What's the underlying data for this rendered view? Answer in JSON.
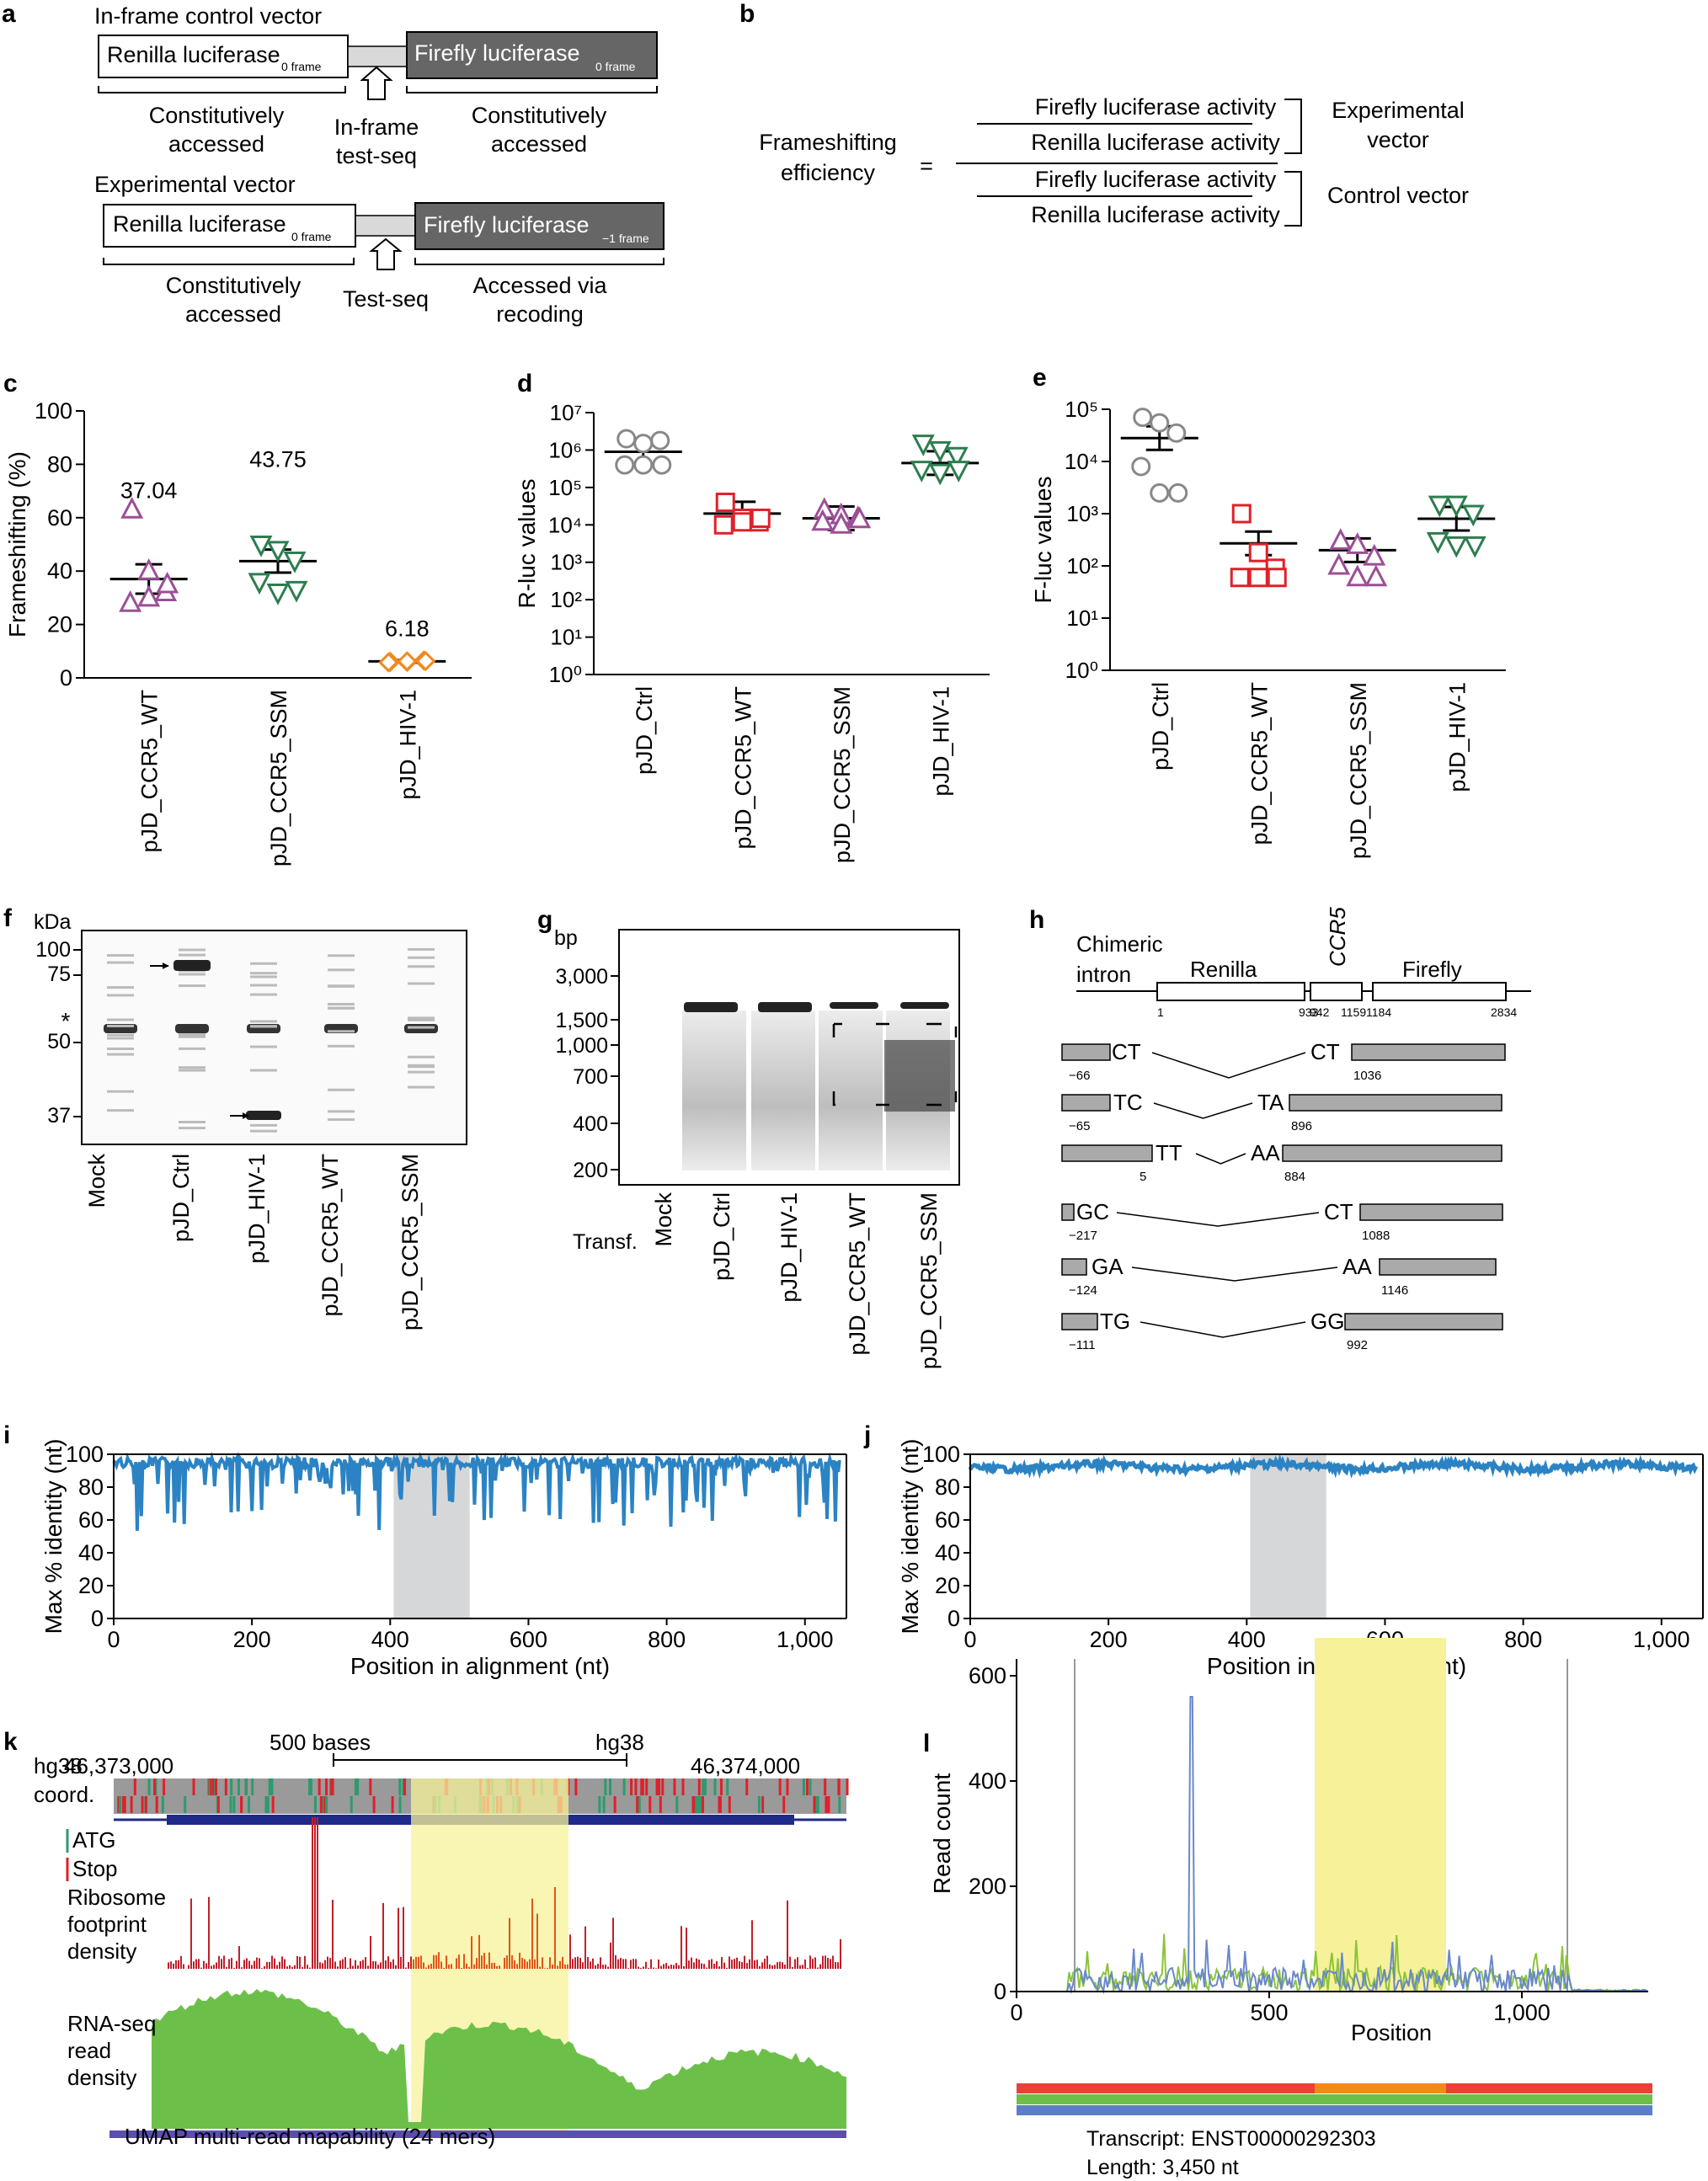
{
  "colors": {
    "grey": "#888888",
    "red": "#e0202a",
    "purple": "#9b4f96",
    "green": "#2e7d4f",
    "orange": "#f08a1c",
    "blue": "#2b83c3",
    "yellow": "#f7f19a",
    "dark": "#666666",
    "shade": "#d6d7d9",
    "rna": "#6cc04a",
    "umap": "#5a4fb0",
    "ribo": "#c0202a"
  },
  "panel_a": {
    "label": "a",
    "control_title": "In-frame control vector",
    "renilla": "Renilla luciferase",
    "frame0": "0 frame",
    "firefly": "Firefly luciferase",
    "frame_m1": "−1 frame",
    "const": "Constitutively",
    "accessed": "accessed",
    "inframe1": "In-frame",
    "inframe2": "test-seq",
    "exp_title": "Experimental vector",
    "testseq": "Test-seq",
    "via1": "Accessed via",
    "via2": "recoding"
  },
  "panel_b": {
    "label": "b",
    "eff1": "Frameshifting",
    "eff2": "efficiency",
    "eq": "=",
    "ff": "Firefly luciferase activity",
    "rl": "Renilla luciferase activity",
    "exp1": "Experimental",
    "exp2": "vector",
    "ctrl": "Control vector"
  },
  "panel_labels": {
    "c": "c",
    "d": "d",
    "e": "e",
    "f": "f",
    "g": "g",
    "h": "h",
    "i": "i",
    "j": "j",
    "k": "k",
    "l": "l"
  },
  "chart_data": [
    {
      "panel": "c",
      "type": "scatter",
      "ylabel": "Frameshifting (%)",
      "ylim": [
        0,
        100
      ],
      "yticks": [
        0,
        20,
        40,
        60,
        80,
        100
      ],
      "categories": [
        "pJD_CCR5_WT",
        "pJD_CCR5_SSM",
        "pJD_HIV-1"
      ],
      "means": [
        37.04,
        43.75,
        6.18
      ],
      "mean_labels": [
        "37.04",
        "43.75",
        "6.18"
      ],
      "sem": [
        5.5,
        4.3,
        0.5
      ],
      "points": [
        [
          63,
          40,
          32,
          28,
          30,
          35
        ],
        [
          50,
          48,
          44,
          36,
          32,
          33
        ],
        [
          6,
          6,
          6.5,
          5.8,
          6.2,
          6.3
        ]
      ]
    },
    {
      "panel": "d",
      "type": "scatter",
      "ylabel": "R-luc values",
      "scale": "log",
      "ylim": [
        0,
        7
      ],
      "ytick_labels": [
        "10⁰",
        "10¹",
        "10²",
        "10³",
        "10⁴",
        "10⁵",
        "10⁶",
        "10⁷"
      ],
      "categories": [
        "pJD_Ctrl",
        "pJD_CCR5_WT",
        "pJD_CCR5_SSM",
        "pJD_HIV-1"
      ],
      "means": [
        900000,
        20000,
        15000,
        450000
      ],
      "points": [
        [
          2000000,
          1500000,
          1800000,
          400000,
          400000,
          400000
        ],
        [
          40000,
          15000,
          12000,
          10000,
          12000,
          15000
        ],
        [
          25000,
          18000,
          15000,
          12000,
          10000,
          14000
        ],
        [
          1500000,
          1000000,
          700000,
          300000,
          250000,
          300000
        ]
      ]
    },
    {
      "panel": "e",
      "type": "scatter",
      "ylabel": "F-luc values",
      "scale": "log",
      "ylim": [
        0,
        5
      ],
      "ytick_labels": [
        "10⁰",
        "10¹",
        "10²",
        "10³",
        "10⁴",
        "10⁵"
      ],
      "categories": [
        "pJD_Ctrl",
        "pJD_CCR5_WT",
        "pJD_CCR5_SSM",
        "pJD_HIV-1"
      ],
      "means": [
        28000,
        270,
        200,
        800
      ],
      "points": [
        [
          70000,
          55000,
          35000,
          8000,
          2500,
          2500
        ],
        [
          1000,
          180,
          90,
          60,
          60,
          60
        ],
        [
          300,
          250,
          150,
          100,
          60,
          60
        ],
        [
          1500,
          1500,
          1000,
          300,
          250,
          250
        ]
      ]
    },
    {
      "panel": "i",
      "type": "line",
      "ylabel": "Max % identity (nt)",
      "xlabel": "Position in alignment (nt)",
      "xlim": [
        0,
        1060
      ],
      "ylim": [
        0,
        100
      ],
      "xtick_labels": [
        "0",
        "200",
        "400",
        "600",
        "800",
        "1,000"
      ],
      "ytick_labels": [
        "0",
        "20",
        "40",
        "60",
        "80",
        "100"
      ],
      "highlight": [
        405,
        515
      ]
    },
    {
      "panel": "j",
      "type": "line",
      "ylabel": "Max % identity (nt)",
      "xlabel": "Position in alignment (nt)",
      "xlim": [
        0,
        1060
      ],
      "ylim": [
        0,
        100
      ],
      "xtick_labels": [
        "0",
        "200",
        "400",
        "600",
        "800",
        "1,000"
      ],
      "ytick_labels": [
        "0",
        "20",
        "40",
        "60",
        "80",
        "100"
      ],
      "highlight": [
        405,
        515
      ]
    },
    {
      "panel": "l",
      "type": "line",
      "ylabel": "Read count",
      "xlabel": "Position",
      "xlim": [
        0,
        1250
      ],
      "ylim": [
        0,
        600
      ],
      "xtick_labels": [
        "0",
        "500",
        "1,000"
      ],
      "ytick_labels": [
        "0",
        "200",
        "400",
        "600"
      ],
      "highlight": [
        590,
        850
      ]
    }
  ],
  "panel_f": {
    "kda": "kDa",
    "markers": [
      "100",
      "75",
      "50",
      "37"
    ],
    "star": "*",
    "lanes": [
      "Mock",
      "pJD_Ctrl",
      "pJD_HIV-1",
      "pJD_CCR5_WT",
      "pJD_CCR5_SSM"
    ]
  },
  "panel_g": {
    "bp": "bp",
    "markers": [
      "3,000",
      "1,500",
      "1,000",
      "700",
      "400",
      "200"
    ],
    "transf": "Transf.",
    "lanes": [
      "Mock",
      "pJD_Ctrl",
      "pJD_HIV-1",
      "pJD_CCR5_WT",
      "pJD_CCR5_SSM"
    ]
  },
  "panel_h": {
    "chimeric": "Chimeric",
    "intron": "intron",
    "renilla": "Renilla",
    "ccr5": "CCR5",
    "firefly": "Firefly",
    "coords": [
      "1",
      "933",
      "942",
      "1159",
      "1184",
      "2834"
    ],
    "junctions": [
      {
        "left": "CT",
        "right": "CT",
        "ln": "−66",
        "rn": "1036"
      },
      {
        "left": "TC",
        "right": "TA",
        "ln": "−65",
        "rn": "896"
      },
      {
        "left": "TT",
        "right": "AA",
        "ln": "5",
        "rn": "884"
      },
      {
        "left": "GC",
        "right": "CT",
        "ln": "−217",
        "rn": "1088"
      },
      {
        "left": "GA",
        "right": "AA",
        "ln": "−124",
        "rn": "1146"
      },
      {
        "left": "TG",
        "right": "GG",
        "ln": "−111",
        "rn": "992"
      }
    ]
  },
  "panel_k": {
    "scale": "500 bases",
    "genome": "hg38",
    "c1": "46,373,000",
    "c2": "46,374,000",
    "hg38": "hg38",
    "coord": "coord.",
    "atg": "ATG",
    "stop": "Stop",
    "ribo1": "Ribosome",
    "ribo2": "footprint",
    "ribo3": "density",
    "rna1": "RNA-seq",
    "rna2": "read",
    "rna3": "density",
    "umap": "UMAP multi-read mapability (24 mers)"
  },
  "panel_l": {
    "transcript": "Transcript: ENST00000292303",
    "length": "Length: 3,450 nt"
  }
}
